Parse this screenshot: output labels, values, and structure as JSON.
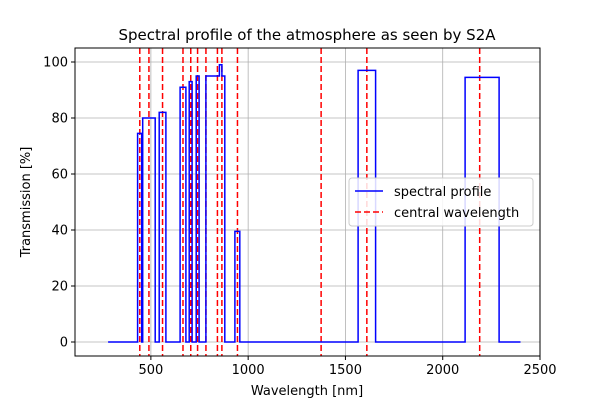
{
  "chart_data": {
    "type": "line",
    "title": "Spectral profile of the atmosphere as seen by S2A",
    "xlabel": "Wavelength [nm]",
    "ylabel": "Transmission [%]",
    "xlim": [
      110,
      2500
    ],
    "ylim": [
      -5,
      105
    ],
    "xticks": [
      500,
      1000,
      1500,
      2000,
      2500
    ],
    "yticks": [
      0,
      20,
      40,
      60,
      80,
      100
    ],
    "grid": true,
    "legend_position": "center-right",
    "series": [
      {
        "name": "spectral profile",
        "color": "#0000ff",
        "style": "solid",
        "x": [
          280,
          432,
          432,
          453,
          453,
          458,
          458,
          522,
          522,
          543,
          543,
          577,
          577,
          650,
          650,
          680,
          680,
          697,
          697,
          712,
          712,
          733,
          733,
          748,
          748,
          783,
          783,
          852,
          852,
          865,
          865,
          880,
          880,
          932,
          932,
          957,
          957,
          1565,
          1565,
          1655,
          1655,
          2115,
          2115,
          2290,
          2290,
          2400
        ],
        "y": [
          0,
          0,
          74.5,
          74.5,
          0,
          0,
          80,
          80,
          0,
          0,
          82,
          82,
          0,
          0,
          91,
          91,
          0,
          0,
          93,
          93,
          0,
          0,
          95,
          95,
          0,
          0,
          95,
          95,
          99,
          99,
          95,
          95,
          0,
          0,
          39.5,
          39.5,
          0,
          0,
          97,
          97,
          0,
          0,
          94.5,
          94.5,
          0,
          0
        ]
      },
      {
        "name": "central wavelength",
        "color": "#ff0000",
        "style": "dashed",
        "x": [
          443,
          490,
          560,
          665,
          705,
          740,
          783,
          842,
          865,
          945,
          1375,
          1610,
          2190
        ]
      }
    ]
  }
}
